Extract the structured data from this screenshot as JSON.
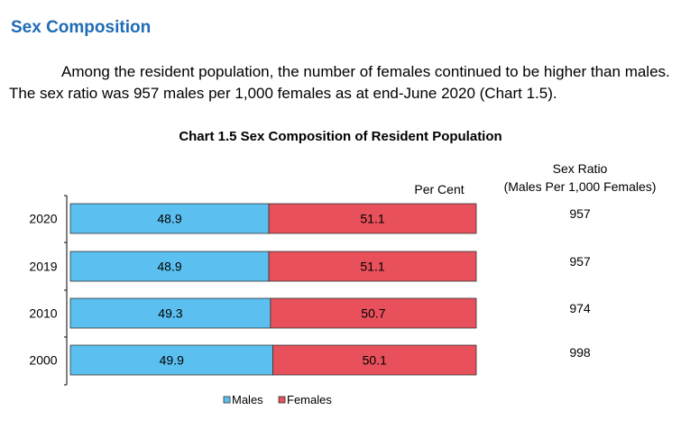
{
  "section": {
    "heading": "Sex Composition",
    "paragraph": "Among the resident population, the number of females continued to be higher than males. The sex ratio was 957 males per 1,000 females as at end-June 2020 (Chart 1.5)."
  },
  "chart_data": {
    "type": "bar",
    "stacked": true,
    "orientation": "horizontal",
    "title": "Chart 1.5  Sex Composition of Resident Population",
    "unit_label": "Per Cent",
    "categories": [
      "2020",
      "2019",
      "2010",
      "2000"
    ],
    "series": [
      {
        "name": "Males",
        "values": [
          48.9,
          48.9,
          49.3,
          49.9
        ],
        "color": "#5bc0f0"
      },
      {
        "name": "Females",
        "values": [
          51.1,
          51.1,
          50.7,
          50.1
        ],
        "color": "#e8505b"
      }
    ],
    "xlim": [
      0,
      100
    ],
    "legend_position": "bottom",
    "sex_ratio": {
      "header_line1": "Sex Ratio",
      "header_line2": "(Males Per 1,000 Females)",
      "values": [
        "957",
        "957",
        "974",
        "998"
      ]
    }
  }
}
